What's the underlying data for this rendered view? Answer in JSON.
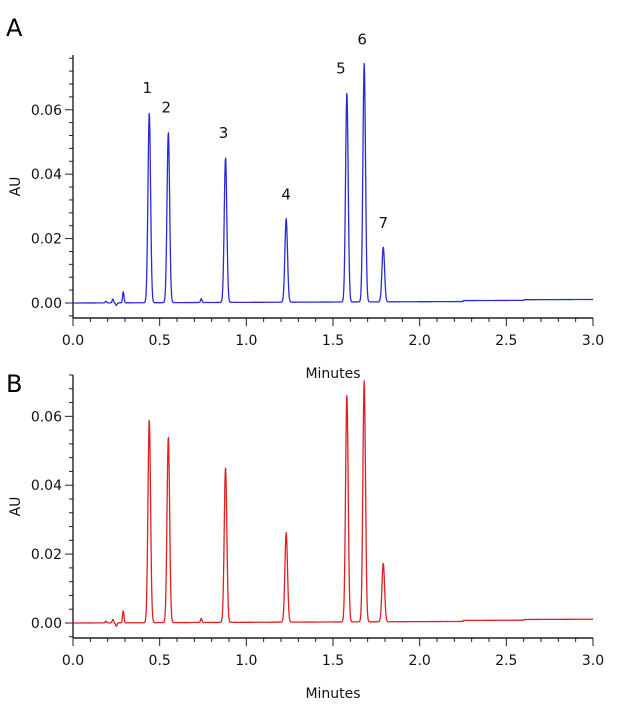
{
  "chart_data": [
    {
      "type": "line",
      "panel_label": "A",
      "color": "#2b2bd6",
      "xlabel": "Minutes",
      "ylabel": "AU",
      "xlim": [
        0.0,
        3.0
      ],
      "ylim": [
        -0.005,
        0.077
      ],
      "x_ticks": [
        "0.0",
        "0.5",
        "1.0",
        "1.5",
        "2.0",
        "2.5",
        "3.0"
      ],
      "y_ticks": [
        "0.00",
        "0.02",
        "0.04",
        "0.06"
      ],
      "grid": false,
      "peaks": [
        {
          "label": "1",
          "x": 0.44,
          "y": 0.059
        },
        {
          "label": "2",
          "x": 0.55,
          "y": 0.053
        },
        {
          "label": "3",
          "x": 0.88,
          "y": 0.045
        },
        {
          "label": "4",
          "x": 1.23,
          "y": 0.026
        },
        {
          "label": "5",
          "x": 1.58,
          "y": 0.065
        },
        {
          "label": "6",
          "x": 1.68,
          "y": 0.074
        },
        {
          "label": "7",
          "x": 1.79,
          "y": 0.017
        }
      ],
      "minor_features": [
        {
          "x": 0.19,
          "y": 0.0005
        },
        {
          "x": 0.23,
          "y": 0.0012
        },
        {
          "x": 0.25,
          "y": -0.0008
        },
        {
          "x": 0.29,
          "y": 0.0035
        },
        {
          "x": 0.74,
          "y": 0.0012
        }
      ]
    },
    {
      "type": "line",
      "panel_label": "B",
      "color": "#e02020",
      "xlabel": "Minutes",
      "ylabel": "AU",
      "xlim": [
        0.0,
        3.0
      ],
      "ylim": [
        -0.005,
        0.072
      ],
      "x_ticks": [
        "0.0",
        "0.5",
        "1.0",
        "1.5",
        "2.0",
        "2.5",
        "3.0"
      ],
      "y_ticks": [
        "0.00",
        "0.02",
        "0.04",
        "0.06"
      ],
      "grid": false,
      "peaks": [
        {
          "label": "",
          "x": 0.44,
          "y": 0.059
        },
        {
          "label": "",
          "x": 0.55,
          "y": 0.054
        },
        {
          "label": "",
          "x": 0.88,
          "y": 0.045
        },
        {
          "label": "",
          "x": 1.23,
          "y": 0.026
        },
        {
          "label": "",
          "x": 1.58,
          "y": 0.066
        },
        {
          "label": "",
          "x": 1.68,
          "y": 0.07
        },
        {
          "label": "",
          "x": 1.79,
          "y": 0.017
        }
      ],
      "minor_features": [
        {
          "x": 0.19,
          "y": 0.0005
        },
        {
          "x": 0.23,
          "y": 0.001
        },
        {
          "x": 0.25,
          "y": -0.001
        },
        {
          "x": 0.29,
          "y": 0.0035
        },
        {
          "x": 0.74,
          "y": 0.0012
        }
      ]
    }
  ]
}
